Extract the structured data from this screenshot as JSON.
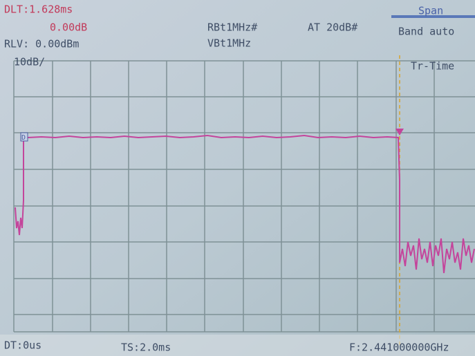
{
  "screen": {
    "delta": "DLT:1.628ms",
    "delta_level": "0.00dB",
    "ref_level": "RLV: 0.00dBm",
    "scale": "10dB/",
    "rbw": "RBt1MHz#",
    "vbw": "VBt1MHz",
    "attenuation": "AT 20dB#",
    "menu_title": "Span",
    "menu_item": "Band auto",
    "softkey": "Tr-Time",
    "marker": "D",
    "delay": "DT:0us",
    "sweep_time": "TS:2.0ms",
    "frequency": "F:2.441000000GHz"
  }
}
